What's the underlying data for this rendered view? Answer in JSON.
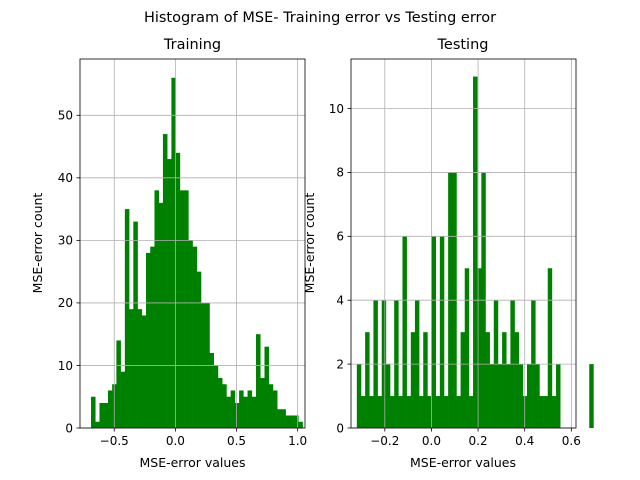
{
  "figure": {
    "suptitle": "Histogram of MSE- Training error vs Testing error"
  },
  "chart_data": [
    {
      "type": "bar",
      "title": "Training",
      "xlabel": "MSE-error values",
      "ylabel": "MSE-error count",
      "xlim": [
        -0.78,
        1.06
      ],
      "ylim": [
        0,
        59
      ],
      "xticks": [
        -0.5,
        0.0,
        0.5,
        1.0
      ],
      "xtick_labels": [
        "−0.5",
        "0.0",
        "0.5",
        "1.0"
      ],
      "yticks": [
        0,
        10,
        20,
        30,
        40,
        50
      ],
      "ytick_labels": [
        "0",
        "10",
        "20",
        "30",
        "40",
        "50"
      ],
      "grid": true,
      "color": "#008000",
      "bin_start": -0.69,
      "bin_width": 0.0346,
      "values": [
        5,
        1,
        4,
        4,
        6,
        7,
        14,
        9,
        35,
        19,
        33,
        19,
        18,
        28,
        29,
        38,
        36,
        47,
        43,
        56,
        44,
        38,
        38,
        30,
        29,
        25,
        20,
        20,
        12,
        10,
        8,
        7,
        5,
        6,
        4,
        6,
        5,
        6,
        5,
        15,
        8,
        13,
        7,
        6,
        3,
        3,
        2,
        2,
        2,
        1
      ]
    },
    {
      "type": "bar",
      "title": "Testing",
      "xlabel": "MSE-error values",
      "ylabel": "MSE-error count",
      "xlim": [
        -0.345,
        0.62
      ],
      "ylim": [
        0,
        11.55
      ],
      "xticks": [
        -0.2,
        0.0,
        0.2,
        0.4,
        0.6
      ],
      "xtick_labels": [
        "−0.2",
        "0.0",
        "0.2",
        "0.4",
        "0.6"
      ],
      "yticks": [
        0,
        2,
        4,
        6,
        8,
        10
      ],
      "ytick_labels": [
        "0",
        "2",
        "4",
        "6",
        "8",
        "10"
      ],
      "grid": true,
      "color": "#008000",
      "bin_start": -0.32,
      "bin_width": 0.0178,
      "values": [
        2,
        1,
        3,
        1,
        4,
        1,
        4,
        2,
        1,
        4,
        1,
        6,
        1,
        3,
        4,
        1,
        3,
        1,
        6,
        1,
        6,
        1,
        8,
        8,
        1,
        3,
        5,
        1,
        11,
        5,
        8,
        3,
        2,
        4,
        2,
        3,
        2,
        4,
        3,
        2,
        1,
        2,
        4,
        2,
        1,
        1,
        5,
        1,
        2,
        0,
        0,
        0,
        0,
        0,
        0,
        0,
        2
      ]
    }
  ]
}
